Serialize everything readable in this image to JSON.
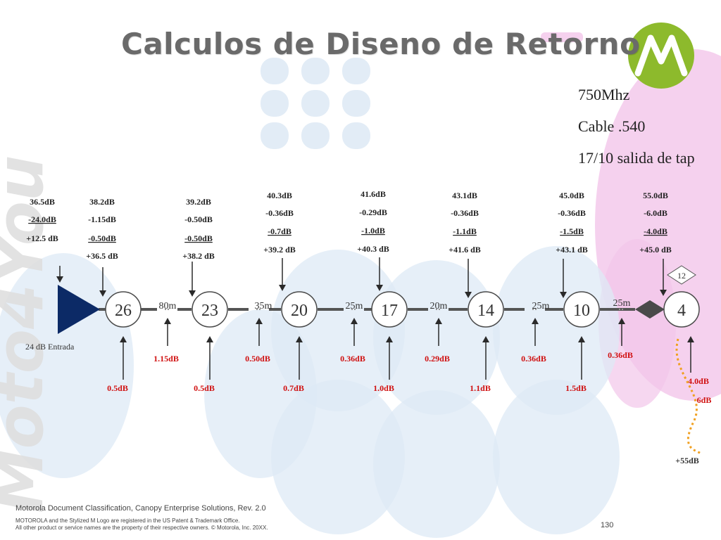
{
  "title": "Calculos de Diseno de Retorno",
  "colors": {
    "title": "#6a6a6a",
    "amp_fill": "#0c2a66",
    "red_text": "#d01010",
    "logo_green": "#8dba2c",
    "orange_dots": "#f0a020",
    "pink_bg": "#f2c6ea",
    "blue_bg": "#dde9f5"
  },
  "specs": {
    "freq": "750Mhz",
    "cable": "Cable .540",
    "tap_out": "17/10 salida de tap"
  },
  "amplifier": {
    "value": "26",
    "input_label": "24 dB Entrada"
  },
  "taps": [
    {
      "value": "23"
    },
    {
      "value": "20"
    },
    {
      "value": "17"
    },
    {
      "value": "14"
    },
    {
      "value": "10"
    },
    {
      "value": "4",
      "badge": "12"
    }
  ],
  "spans": [
    "80m",
    "35m",
    "25m",
    "20m",
    "25m",
    "25m"
  ],
  "cable_losses": [
    "1.15dB",
    "0.50dB",
    "0.36dB",
    "0.29dB",
    "0.36dB",
    "0.36dB"
  ],
  "insertion_losses": [
    "0.5dB",
    "0.5dB",
    "0.7dB",
    "1.0dB",
    "1.1dB",
    "1.5dB"
  ],
  "tap_loss_labels": [
    "4.0dB",
    "-6dB",
    "+55dB"
  ],
  "calc_blocks": [
    {
      "l1": "36.5dB",
      "l2": "-24.0dB",
      "l3": "+12.5 dB",
      "l4": ""
    },
    {
      "l1": "38.2dB",
      "l2": "-1.15dB",
      "l3": "-0.50dB",
      "l4": "+36.5 dB"
    },
    {
      "l1": "39.2dB",
      "l2": "-0.50dB",
      "l3": "-0.50dB",
      "l4": "+38.2 dB"
    },
    {
      "l1": "40.3dB",
      "l2": "-0.36dB",
      "l3": "-0.7dB",
      "l4": "+39.2 dB"
    },
    {
      "l1": "41.6dB",
      "l2": "-0.29dB",
      "l3": "-1.0dB",
      "l4": "+40.3 dB"
    },
    {
      "l1": "43.1dB",
      "l2": "-0.36dB",
      "l3": "-1.1dB",
      "l4": "+41.6 dB"
    },
    {
      "l1": "45.0dB",
      "l2": "-0.36dB",
      "l3": "-1.5dB",
      "l4": "+43.1 dB"
    },
    {
      "l1": "55.0dB",
      "l2": "-6.0dB",
      "l3": "-4.0dB",
      "l4": "+45.0 dB"
    }
  ],
  "watermark": "Moto4You",
  "footer": {
    "classification": "Motorola Document Classification, Canopy Enterprise Solutions, Rev. 2.0",
    "trademark1": "MOTOROLA and the Stylized M Logo are registered in the US Patent & Trademark Office.",
    "trademark2": "All other product or service names are the property of their respective owners. © Motorola, Inc. 20XX.",
    "page": "130"
  }
}
